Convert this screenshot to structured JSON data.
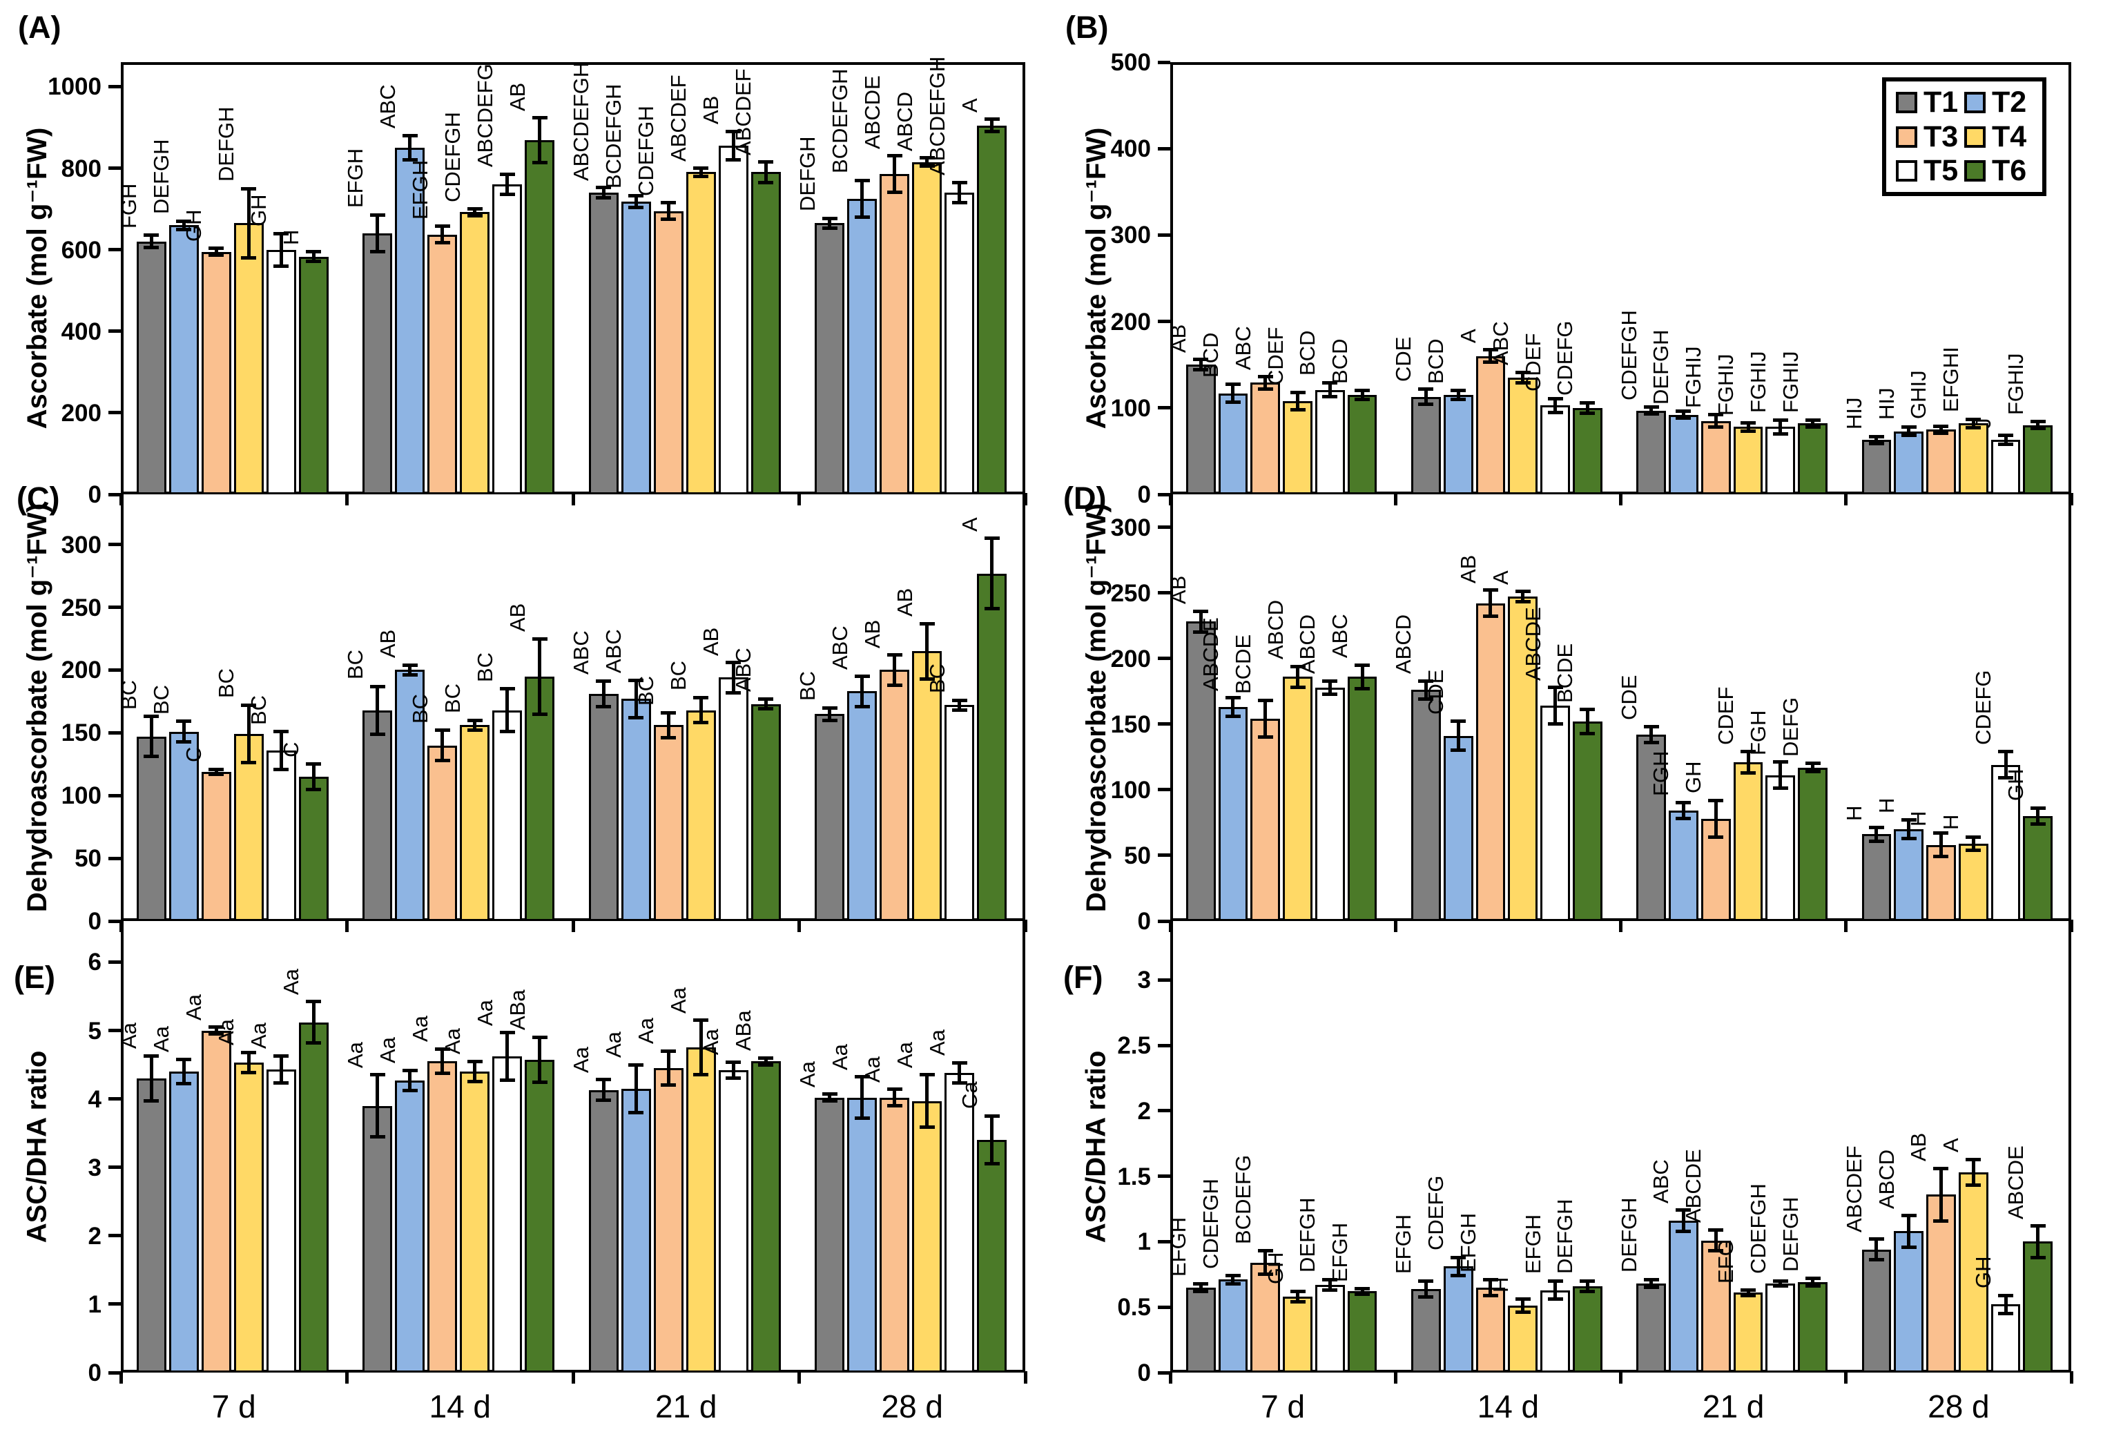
{
  "figure_title": "",
  "legend": {
    "position": "top-right of panel B",
    "items": [
      {
        "label": "T1",
        "color": "#7F7F7F"
      },
      {
        "label": "T2",
        "color": "#8EB4E3"
      },
      {
        "label": "T3",
        "color": "#FAC08F"
      },
      {
        "label": "T4",
        "color": "#FFD966"
      },
      {
        "label": "T5",
        "color": "#FFFFFF"
      },
      {
        "label": "T6",
        "color": "#4B7A28"
      }
    ]
  },
  "categories": [
    "7 d",
    "14 d",
    "21 d",
    "28 d"
  ],
  "chart_data": [
    {
      "id": "A",
      "panel_label": "(A)",
      "type": "bar",
      "grid": false,
      "ylabel": "Ascorbate (mol g⁻¹FW)",
      "xlabel": "",
      "ylim": [
        0,
        1060
      ],
      "yticks": [
        0,
        200,
        400,
        600,
        800,
        1000
      ],
      "ytick_labels": [
        "0",
        "200",
        "400",
        "600",
        "800",
        "1000"
      ],
      "categories": [
        "7 d",
        "14 d",
        "21 d",
        "28 d"
      ],
      "show_x_labels": false,
      "show_legend": false,
      "series": [
        {
          "name": "T1",
          "values": [
            620,
            640,
            740,
            665
          ],
          "errors": [
            15,
            45,
            12,
            12
          ],
          "letters": [
            "FGH",
            "EFGH",
            "ABCDEFGH",
            "DEFGH"
          ]
        },
        {
          "name": "T2",
          "values": [
            660,
            850,
            718,
            725
          ],
          "errors": [
            10,
            30,
            15,
            45
          ],
          "letters": [
            "DEFGH",
            "ABC",
            "BCDEFGH",
            "BCDEFGH"
          ]
        },
        {
          "name": "T3",
          "values": [
            595,
            637,
            695,
            785
          ],
          "errors": [
            8,
            20,
            20,
            45
          ],
          "letters": [
            "GH",
            "EFGH",
            "CDEFGH",
            "ABCDE"
          ]
        },
        {
          "name": "T4",
          "values": [
            665,
            692,
            790,
            815
          ],
          "errors": [
            85,
            8,
            10,
            10
          ],
          "letters": [
            "DEFGH",
            "CDEFGH",
            "ABCDEF",
            "ABCD"
          ]
        },
        {
          "name": "T5",
          "values": [
            600,
            760,
            855,
            740
          ],
          "errors": [
            40,
            25,
            35,
            25
          ],
          "letters": [
            "GH",
            "ABCDEFG",
            "AB",
            "ABCDEFGH"
          ]
        },
        {
          "name": "T6",
          "values": [
            583,
            868,
            790,
            905
          ],
          "errors": [
            12,
            55,
            25,
            15
          ],
          "letters": [
            "H",
            "AB",
            "ABCDEF",
            "A"
          ]
        }
      ]
    },
    {
      "id": "B",
      "panel_label": "(B)",
      "type": "bar",
      "grid": false,
      "ylabel": "Ascorbate (mol g⁻¹FW)",
      "xlabel": "",
      "ylim": [
        0,
        500
      ],
      "yticks": [
        0,
        100,
        200,
        300,
        400,
        500
      ],
      "ytick_labels": [
        "0",
        "100",
        "200",
        "300",
        "400",
        "500"
      ],
      "categories": [
        "7 d",
        "14 d",
        "21 d",
        "28 d"
      ],
      "show_x_labels": false,
      "show_legend": true,
      "series": [
        {
          "name": "T1",
          "values": [
            150,
            113,
            97,
            63
          ],
          "errors": [
            6,
            9,
            4,
            4
          ],
          "letters": [
            "AB",
            "CDE",
            "CDEFGH",
            "HIJ"
          ]
        },
        {
          "name": "T2",
          "values": [
            117,
            115,
            92,
            73
          ],
          "errors": [
            10,
            5,
            4,
            5
          ],
          "letters": [
            "BCD",
            "BCD",
            "DEFGH",
            "HIJ"
          ]
        },
        {
          "name": "T3",
          "values": [
            129,
            160,
            85,
            75
          ],
          "errors": [
            7,
            7,
            7,
            4
          ],
          "letters": [
            "ABC",
            "A",
            "FGHIJ",
            "GHIJ"
          ]
        },
        {
          "name": "T4",
          "values": [
            108,
            135,
            78,
            82
          ],
          "errors": [
            10,
            6,
            5,
            5
          ],
          "letters": [
            "CDEF",
            "ABC",
            "FGHIJ",
            "EFGHI"
          ]
        },
        {
          "name": "T5",
          "values": [
            121,
            103,
            78,
            63
          ],
          "errors": [
            8,
            8,
            8,
            5
          ],
          "letters": [
            "BCD",
            "CDEF",
            "FGHIJ",
            "J"
          ]
        },
        {
          "name": "T6",
          "values": [
            115,
            100,
            82,
            80
          ],
          "errors": [
            5,
            6,
            4,
            4
          ],
          "letters": [
            "BCD",
            "CDEFG",
            "FGHIJ",
            "FGHIJ"
          ]
        }
      ]
    },
    {
      "id": "C",
      "panel_label": "(C)",
      "type": "bar",
      "grid": false,
      "ylabel": "Dehydroascorbate (mol g⁻¹FW)",
      "xlabel": "",
      "ylim": [
        0,
        340
      ],
      "yticks": [
        0,
        50,
        100,
        150,
        200,
        250,
        300
      ],
      "ytick_labels": [
        "0",
        "50",
        "100",
        "150",
        "200",
        "250",
        "300"
      ],
      "categories": [
        "7 d",
        "14 d",
        "21 d",
        "28 d"
      ],
      "show_x_labels": false,
      "show_legend": false,
      "series": [
        {
          "name": "T1",
          "values": [
            147,
            168,
            181,
            165
          ],
          "errors": [
            16,
            19,
            10,
            5
          ],
          "letters": [
            "BC",
            "BC",
            "ABC",
            "BC"
          ]
        },
        {
          "name": "T2",
          "values": [
            151,
            200,
            177,
            183
          ],
          "errors": [
            8,
            4,
            15,
            12
          ],
          "letters": [
            "BC",
            "AB",
            "ABC",
            "ABC"
          ]
        },
        {
          "name": "T3",
          "values": [
            119,
            140,
            156,
            200
          ],
          "errors": [
            2,
            12,
            10,
            12
          ],
          "letters": [
            "C",
            "BC",
            "BC",
            "AB"
          ]
        },
        {
          "name": "T4",
          "values": [
            149,
            156,
            168,
            215
          ],
          "errors": [
            23,
            4,
            10,
            22
          ],
          "letters": [
            "BC",
            "BC",
            "BC",
            "AB"
          ]
        },
        {
          "name": "T5",
          "values": [
            136,
            168,
            194,
            172
          ],
          "errors": [
            15,
            17,
            12,
            4
          ],
          "letters": [
            "BC",
            "BC",
            "AB",
            "BC"
          ]
        },
        {
          "name": "T6",
          "values": [
            115,
            195,
            173,
            277
          ],
          "errors": [
            10,
            30,
            4,
            28
          ],
          "letters": [
            "C",
            "AB",
            "ABC",
            "A"
          ]
        }
      ]
    },
    {
      "id": "D",
      "panel_label": "(D)",
      "type": "bar",
      "grid": false,
      "ylabel": "Dehydroascorbate (mol g⁻¹FW)",
      "xlabel": "",
      "ylim": [
        0,
        325
      ],
      "yticks": [
        0,
        50,
        100,
        150,
        200,
        250,
        300
      ],
      "ytick_labels": [
        "0",
        "50",
        "100",
        "150",
        "200",
        "250",
        "300"
      ],
      "categories": [
        "7 d",
        "14 d",
        "21 d",
        "28 d"
      ],
      "show_x_labels": false,
      "show_legend": false,
      "series": [
        {
          "name": "T1",
          "values": [
            228,
            176,
            142,
            66
          ],
          "errors": [
            8,
            7,
            6,
            5
          ],
          "letters": [
            "AB",
            "ABCD",
            "CDE",
            "H"
          ]
        },
        {
          "name": "T2",
          "values": [
            163,
            141,
            84,
            70
          ],
          "errors": [
            7,
            11,
            6,
            7
          ],
          "letters": [
            "ABCDE",
            "CDE",
            "FGH",
            "H"
          ]
        },
        {
          "name": "T3",
          "values": [
            154,
            242,
            78,
            58
          ],
          "errors": [
            14,
            10,
            14,
            9
          ],
          "letters": [
            "BCDE",
            "AB",
            "GH",
            "H"
          ]
        },
        {
          "name": "T4",
          "values": [
            186,
            247,
            121,
            59
          ],
          "errors": [
            8,
            4,
            8,
            5
          ],
          "letters": [
            "ABCD",
            "A",
            "CDEF",
            "H"
          ]
        },
        {
          "name": "T5",
          "values": [
            178,
            164,
            111,
            119
          ],
          "errors": [
            5,
            14,
            10,
            10
          ],
          "letters": [
            "ABCD",
            "ABCDE",
            "FGH",
            "CDEFG"
          ]
        },
        {
          "name": "T6",
          "values": [
            186,
            152,
            117,
            80
          ],
          "errors": [
            9,
            9,
            3,
            6
          ],
          "letters": [
            "ABC",
            "BCDE",
            "DEFG",
            "GH"
          ]
        }
      ]
    },
    {
      "id": "E",
      "panel_label": "(E)",
      "type": "bar",
      "grid": false,
      "ylabel": "ASC/DHA ratio",
      "xlabel": "",
      "ylim": [
        0,
        6.6
      ],
      "yticks": [
        0,
        1,
        2,
        3,
        4,
        5,
        6
      ],
      "ytick_labels": [
        "0",
        "1",
        "2",
        "3",
        "4",
        "5",
        "6"
      ],
      "categories": [
        "7 d",
        "14 d",
        "21 d",
        "28 d"
      ],
      "show_x_labels": true,
      "show_legend": false,
      "series": [
        {
          "name": "T1",
          "values": [
            4.3,
            3.9,
            4.13,
            4.02
          ],
          "errors": [
            0.33,
            0.45,
            0.15,
            0.05
          ],
          "letters": [
            "Aa",
            "Aa",
            "Aa",
            "Aa"
          ]
        },
        {
          "name": "T2",
          "values": [
            4.4,
            4.27,
            4.15,
            4.02
          ],
          "errors": [
            0.18,
            0.15,
            0.35,
            0.3
          ],
          "letters": [
            "Aa",
            "Aa",
            "Aa",
            "Aa"
          ]
        },
        {
          "name": "T3",
          "values": [
            5.0,
            4.55,
            4.45,
            4.02
          ],
          "errors": [
            0.05,
            0.18,
            0.25,
            0.12
          ],
          "letters": [
            "Aa",
            "Aa",
            "Aa",
            "Aa"
          ]
        },
        {
          "name": "T4",
          "values": [
            4.53,
            4.4,
            4.75,
            3.97
          ],
          "errors": [
            0.15,
            0.15,
            0.4,
            0.38
          ],
          "letters": [
            "Aa",
            "Aa",
            "Aa",
            "Aa"
          ]
        },
        {
          "name": "T5",
          "values": [
            4.43,
            4.62,
            4.42,
            4.38
          ],
          "errors": [
            0.2,
            0.35,
            0.12,
            0.15
          ],
          "letters": [
            "Aa",
            "Aa",
            "Aa",
            "Aa"
          ]
        },
        {
          "name": "T6",
          "values": [
            5.12,
            4.57,
            4.55,
            3.4
          ],
          "errors": [
            0.3,
            0.33,
            0.05,
            0.35
          ],
          "letters": [
            "Aa",
            "ABa",
            "ABa",
            "Ca"
          ]
        }
      ]
    },
    {
      "id": "F",
      "panel_label": "(F)",
      "type": "bar",
      "grid": false,
      "ylabel": "ASC/DHA ratio",
      "xlabel": "",
      "ylim": [
        0,
        3.45
      ],
      "yticks": [
        0,
        0.5,
        1,
        1.5,
        2,
        2.5,
        3
      ],
      "ytick_labels": [
        "0",
        "0.5",
        "1",
        "1.5",
        "2",
        "2.5",
        "3"
      ],
      "categories": [
        "7 d",
        "14 d",
        "21 d",
        "28 d"
      ],
      "show_x_labels": true,
      "show_legend": false,
      "series": [
        {
          "name": "T1",
          "values": [
            0.65,
            0.64,
            0.68,
            0.94
          ],
          "errors": [
            0.03,
            0.06,
            0.03,
            0.08
          ],
          "letters": [
            "EFGH",
            "EFGH",
            "DEFGH",
            "ABCDEF"
          ]
        },
        {
          "name": "T2",
          "values": [
            0.71,
            0.81,
            1.16,
            1.08
          ],
          "errors": [
            0.03,
            0.07,
            0.08,
            0.12
          ],
          "letters": [
            "CDEFGH",
            "CDEFG",
            "ABC",
            "ABCD"
          ]
        },
        {
          "name": "T3",
          "values": [
            0.84,
            0.65,
            1.01,
            1.36
          ],
          "errors": [
            0.09,
            0.06,
            0.08,
            0.2
          ],
          "letters": [
            "BCDEFG",
            "EFGH",
            "ABCDE",
            "AB"
          ]
        },
        {
          "name": "T4",
          "values": [
            0.58,
            0.51,
            0.61,
            1.53
          ],
          "errors": [
            0.04,
            0.05,
            0.02,
            0.1
          ],
          "letters": [
            "GH",
            "H",
            "EFG",
            "A"
          ]
        },
        {
          "name": "T5",
          "values": [
            0.67,
            0.63,
            0.68,
            0.52
          ],
          "errors": [
            0.04,
            0.07,
            0.02,
            0.07
          ],
          "letters": [
            "DEFGH",
            "EFGH",
            "CDEFGH",
            "GH"
          ]
        },
        {
          "name": "T6",
          "values": [
            0.62,
            0.66,
            0.69,
            1.0
          ],
          "errors": [
            0.02,
            0.04,
            0.03,
            0.12
          ],
          "letters": [
            "EFGH",
            "DEFGH",
            "DEFGH",
            "ABCDE"
          ]
        }
      ]
    }
  ]
}
